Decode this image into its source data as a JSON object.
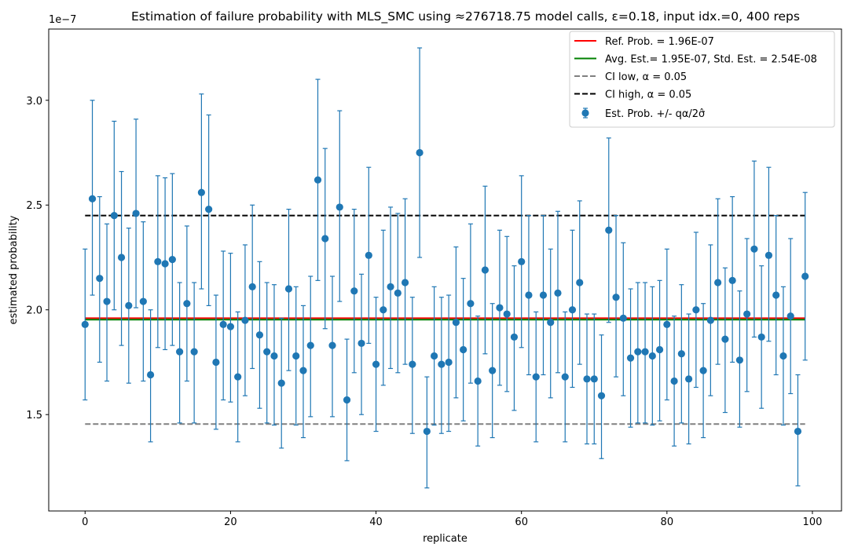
{
  "chart_data": {
    "type": "scatter",
    "title": "Estimation of failure probability with MLS_SMC using ≈276718.75 model calls, ε=0.18, input idx.=0, 400 reps",
    "xlabel": "replicate",
    "ylabel": "estimated probability",
    "y_offset_label": "1e−7",
    "xlim": [
      -5,
      104
    ],
    "ylim": [
      1.04,
      3.34
    ],
    "y_scale_exponent": -7,
    "x_ticks": [
      0,
      20,
      40,
      60,
      80,
      100
    ],
    "y_ticks": [
      1.5,
      2.0,
      2.5,
      3.0
    ],
    "y_tick_labels": [
      "1.5",
      "2.0",
      "2.5",
      "3.0"
    ],
    "grid": false,
    "legend_position": "top-right",
    "reference_lines": [
      {
        "name": "Ref. Prob. = 1.96E-07",
        "value": 1.96,
        "color": "#ff0000",
        "style": "solid"
      },
      {
        "name": "Avg. Est.= 1.95E-07, Std. Est. = 2.54E-08",
        "value": 1.953,
        "color": "#008000",
        "style": "solid"
      },
      {
        "name": "CI low, α = 0.05",
        "value": 1.455,
        "color": "#808080",
        "style": "dashed"
      },
      {
        "name": "CI high, α = 0.05",
        "value": 2.45,
        "color": "#000000",
        "style": "dashed"
      }
    ],
    "series": [
      {
        "name": "Est. Prob. +/- qα/2σ̂",
        "color": "#1f77b4",
        "x": [
          0,
          1,
          2,
          3,
          4,
          5,
          6,
          7,
          8,
          9,
          10,
          11,
          12,
          13,
          14,
          15,
          16,
          17,
          18,
          19,
          20,
          21,
          22,
          23,
          24,
          25,
          26,
          27,
          28,
          29,
          30,
          31,
          32,
          33,
          34,
          35,
          36,
          37,
          38,
          39,
          40,
          41,
          42,
          43,
          44,
          45,
          46,
          47,
          48,
          49,
          50,
          51,
          52,
          53,
          54,
          55,
          56,
          57,
          58,
          59,
          60,
          61,
          62,
          63,
          64,
          65,
          66,
          67,
          68,
          69,
          70,
          71,
          72,
          73,
          74,
          75,
          76,
          77,
          78,
          79,
          80,
          81,
          82,
          83,
          84,
          85,
          86,
          87,
          88,
          89,
          90,
          91,
          92,
          93,
          94,
          95,
          96,
          97,
          98,
          99
        ],
        "y": [
          1.93,
          2.53,
          2.15,
          2.04,
          2.45,
          2.25,
          2.02,
          2.46,
          2.04,
          1.69,
          2.23,
          2.22,
          2.24,
          1.8,
          2.03,
          1.8,
          2.56,
          2.48,
          1.75,
          1.93,
          1.92,
          1.68,
          1.95,
          2.11,
          1.88,
          1.8,
          1.78,
          1.65,
          2.1,
          1.78,
          1.71,
          1.83,
          2.62,
          2.34,
          1.83,
          2.49,
          1.57,
          2.09,
          1.84,
          2.26,
          1.74,
          2.0,
          2.11,
          2.08,
          2.13,
          1.74,
          2.75,
          1.42,
          1.78,
          1.74,
          1.75,
          1.94,
          1.81,
          2.03,
          1.66,
          2.19,
          1.71,
          2.01,
          1.98,
          1.87,
          2.23,
          2.07,
          1.68,
          2.07,
          1.94,
          2.08,
          1.68,
          2.0,
          2.13,
          1.67,
          1.67,
          1.59,
          2.38,
          2.06,
          1.96,
          1.77,
          1.8,
          1.8,
          1.78,
          1.81,
          1.93,
          1.66,
          1.79,
          1.67,
          2.0,
          1.71,
          1.95,
          2.13,
          1.86,
          2.14,
          1.76,
          1.98,
          2.29,
          1.87,
          2.26,
          2.07,
          1.78,
          1.97,
          1.42,
          2.16
        ],
        "err_low": [
          1.57,
          2.07,
          1.75,
          1.66,
          2.0,
          1.83,
          1.65,
          2.01,
          1.66,
          1.37,
          1.82,
          1.81,
          1.83,
          1.46,
          1.66,
          1.46,
          2.1,
          2.02,
          1.43,
          1.57,
          1.56,
          1.37,
          1.59,
          1.72,
          1.53,
          1.46,
          1.45,
          1.34,
          1.71,
          1.45,
          1.39,
          1.49,
          2.14,
          1.91,
          1.49,
          2.04,
          1.28,
          1.7,
          1.5,
          1.84,
          1.42,
          1.64,
          1.72,
          1.7,
          1.74,
          1.41,
          2.25,
          1.15,
          1.45,
          1.41,
          1.42,
          1.58,
          1.47,
          1.65,
          1.35,
          1.79,
          1.39,
          1.64,
          1.61,
          1.52,
          1.82,
          1.69,
          1.37,
          1.69,
          1.58,
          1.7,
          1.37,
          1.63,
          1.74,
          1.36,
          1.36,
          1.29,
          1.94,
          1.68,
          1.59,
          1.44,
          1.46,
          1.46,
          1.45,
          1.47,
          1.57,
          1.35,
          1.46,
          1.36,
          1.63,
          1.39,
          1.59,
          1.74,
          1.51,
          1.75,
          1.44,
          1.61,
          1.87,
          1.53,
          1.85,
          1.69,
          1.45,
          1.6,
          1.16,
          1.76
        ],
        "err_high": [
          2.29,
          3.0,
          2.54,
          2.41,
          2.9,
          2.66,
          2.39,
          2.91,
          2.42,
          2.0,
          2.64,
          2.63,
          2.65,
          2.13,
          2.4,
          2.13,
          3.03,
          2.93,
          2.07,
          2.28,
          2.27,
          1.99,
          2.31,
          2.5,
          2.23,
          2.13,
          2.12,
          1.96,
          2.48,
          2.11,
          2.02,
          2.16,
          3.1,
          2.77,
          2.16,
          2.95,
          1.86,
          2.48,
          2.17,
          2.68,
          2.06,
          2.38,
          2.49,
          2.46,
          2.53,
          2.06,
          3.25,
          1.68,
          2.11,
          2.06,
          2.07,
          2.3,
          2.15,
          2.41,
          1.97,
          2.59,
          2.03,
          2.38,
          2.35,
          2.21,
          2.64,
          2.45,
          1.99,
          2.45,
          2.29,
          2.47,
          1.99,
          2.38,
          2.52,
          1.98,
          1.98,
          1.88,
          2.82,
          2.45,
          2.32,
          2.1,
          2.13,
          2.13,
          2.11,
          2.14,
          2.29,
          1.97,
          2.12,
          1.98,
          2.37,
          2.03,
          2.31,
          2.53,
          2.2,
          2.54,
          2.09,
          2.34,
          2.71,
          2.21,
          2.68,
          2.45,
          2.11,
          2.34,
          1.69,
          2.56
        ]
      }
    ]
  }
}
